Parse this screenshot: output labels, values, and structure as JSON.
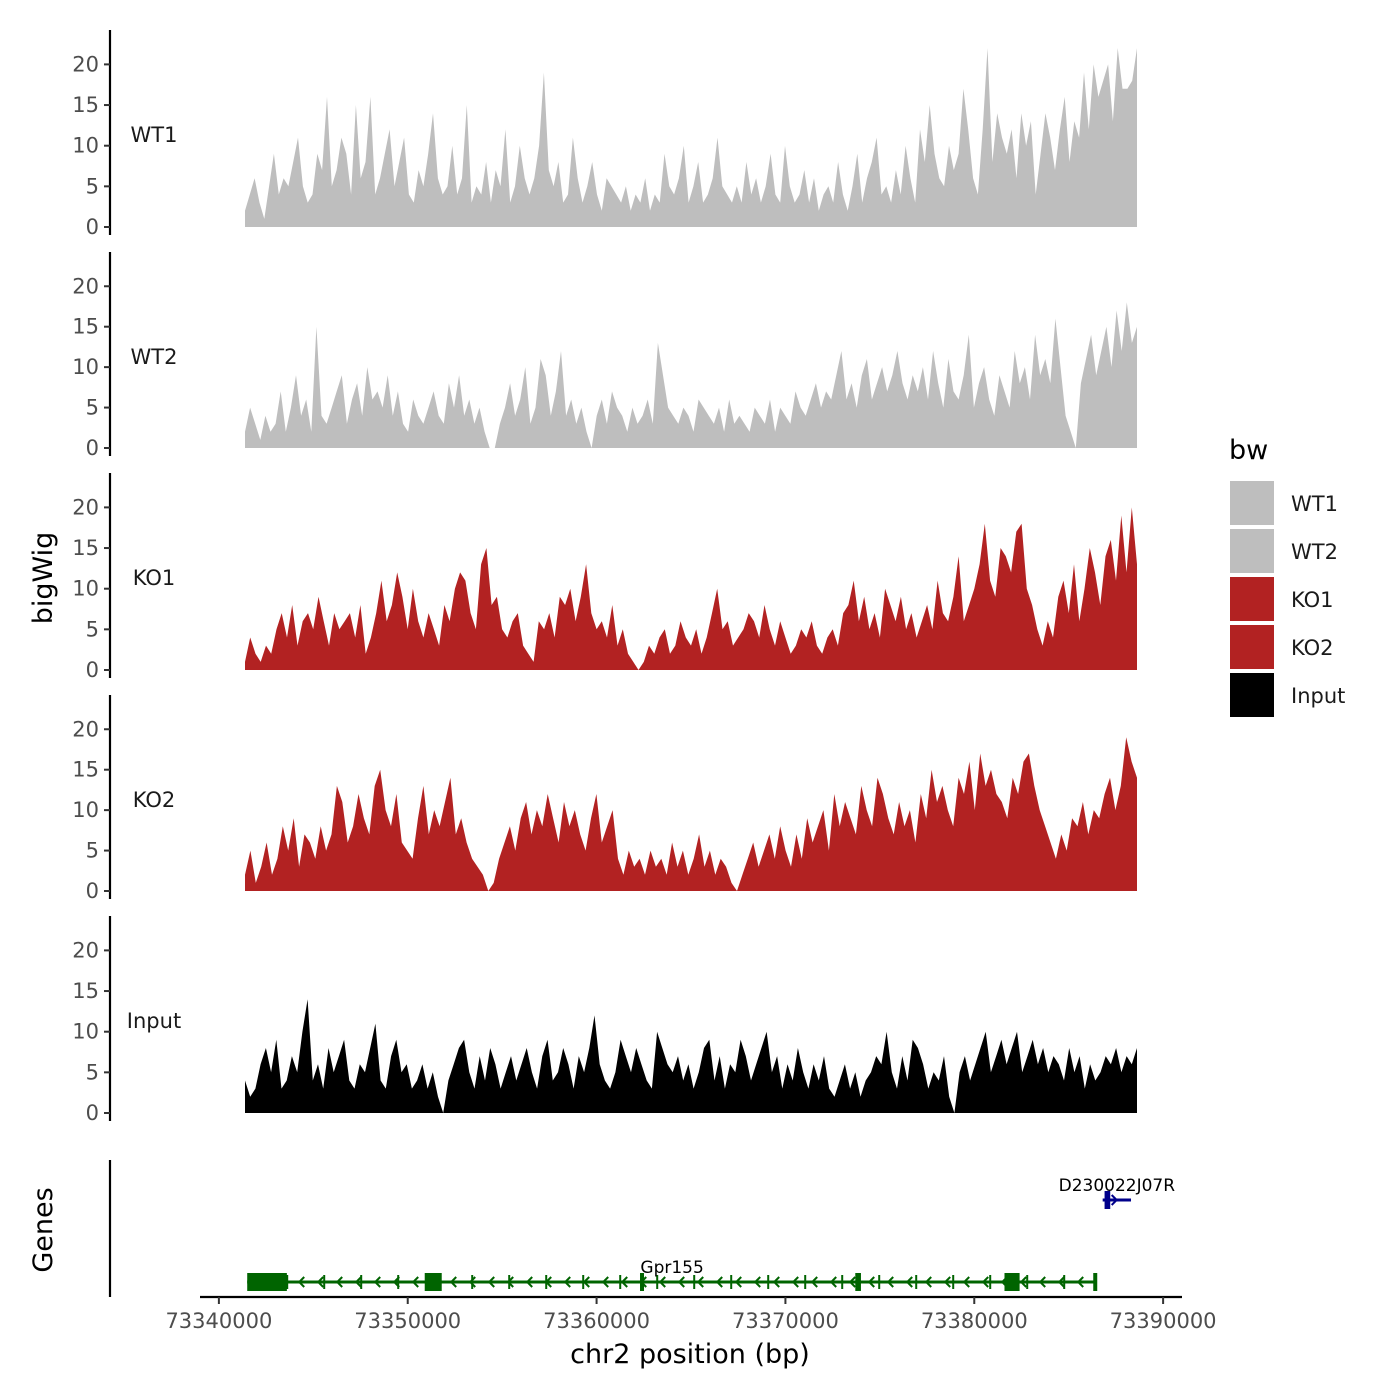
{
  "chart_data": {
    "type": "area",
    "ylabel": "bigWig",
    "xlabel": "chr2 position (bp)",
    "x_range_bp": [
      73341500,
      73388500
    ],
    "xlim": [
      73339000,
      73391000
    ],
    "x_ticks": [
      73340000,
      73350000,
      73360000,
      73370000,
      73380000,
      73390000
    ],
    "x_tick_labels": [
      "73340000",
      "73350000",
      "73360000",
      "73370000",
      "73380000",
      "73390000"
    ],
    "ylim": [
      0,
      23
    ],
    "y_ticks": [
      0,
      5,
      10,
      15,
      20
    ],
    "y_tick_labels": [
      "0",
      "5",
      "10",
      "15",
      "20"
    ],
    "legend": {
      "title": "bw",
      "position": "right",
      "entries": [
        {
          "label": "WT1",
          "color": "#bebebe"
        },
        {
          "label": "WT2",
          "color": "#bebebe"
        },
        {
          "label": "KO1",
          "color": "#b22222"
        },
        {
          "label": "KO2",
          "color": "#b22222"
        },
        {
          "label": "Input",
          "color": "#000000"
        }
      ]
    },
    "series": [
      {
        "name": "WT1",
        "color": "#bebebe",
        "values": [
          2,
          4,
          6,
          3,
          1,
          5,
          9,
          4,
          6,
          5,
          8,
          11,
          5,
          3,
          4,
          9,
          7,
          16,
          5,
          7,
          11,
          9,
          4,
          15,
          6,
          8,
          16,
          4,
          6,
          9,
          12,
          5,
          8,
          11,
          4,
          3,
          7,
          5,
          9,
          14,
          6,
          4,
          5,
          10,
          4,
          6,
          15,
          3,
          5,
          4,
          8,
          3,
          7,
          5,
          12,
          3,
          5,
          10,
          6,
          4,
          6,
          10,
          19,
          7,
          5,
          8,
          3,
          4,
          11,
          6,
          3,
          5,
          8,
          4,
          2,
          6,
          5,
          4,
          3,
          5,
          2,
          4,
          3,
          6,
          2,
          4,
          3,
          9,
          5,
          4,
          6,
          10,
          3,
          5,
          8,
          3,
          4,
          6,
          11,
          5,
          4,
          3,
          5,
          3,
          8,
          4,
          6,
          3,
          5,
          9,
          4,
          3,
          10,
          5,
          3,
          4,
          7,
          3,
          6,
          2,
          4,
          5,
          3,
          8,
          4,
          2,
          5,
          9,
          3,
          6,
          8,
          11,
          4,
          5,
          3,
          7,
          4,
          10,
          6,
          3,
          12,
          8,
          15,
          9,
          6,
          5,
          10,
          7,
          9,
          17,
          12,
          6,
          4,
          12,
          22,
          8,
          14,
          11,
          9,
          12,
          6,
          14,
          10,
          13,
          4,
          9,
          14,
          11,
          7,
          12,
          16,
          8,
          13,
          11,
          19,
          12,
          20,
          16,
          18,
          20,
          13,
          22,
          17,
          17,
          18,
          22
        ]
      },
      {
        "name": "WT2",
        "color": "#bebebe",
        "values": [
          2,
          5,
          3,
          1,
          4,
          2,
          3,
          7,
          2,
          5,
          9,
          4,
          6,
          2,
          15,
          4,
          3,
          5,
          7,
          9,
          3,
          6,
          8,
          4,
          10,
          6,
          7,
          5,
          9,
          4,
          7,
          3,
          2,
          6,
          4,
          3,
          5,
          7,
          4,
          3,
          8,
          5,
          9,
          4,
          6,
          3,
          5,
          2,
          0,
          0,
          3,
          5,
          8,
          4,
          6,
          10,
          3,
          5,
          11,
          9,
          4,
          7,
          12,
          4,
          6,
          3,
          5,
          2,
          0,
          4,
          6,
          3,
          7,
          5,
          4,
          2,
          5,
          3,
          4,
          6,
          3,
          13,
          9,
          5,
          4,
          3,
          5,
          4,
          2,
          6,
          5,
          4,
          3,
          5,
          2,
          6,
          3,
          4,
          3,
          2,
          5,
          4,
          3,
          6,
          2,
          5,
          4,
          3,
          7,
          5,
          4,
          6,
          8,
          5,
          7,
          6,
          9,
          12,
          6,
          8,
          5,
          9,
          11,
          6,
          8,
          10,
          7,
          9,
          12,
          8,
          6,
          9,
          7,
          10,
          6,
          12,
          8,
          5,
          11,
          7,
          6,
          9,
          14,
          5,
          8,
          10,
          6,
          4,
          9,
          7,
          5,
          12,
          8,
          10,
          6,
          14,
          9,
          11,
          8,
          16,
          10,
          4,
          2,
          0,
          8,
          11,
          14,
          9,
          12,
          15,
          10,
          17,
          12,
          18,
          13,
          15
        ]
      },
      {
        "name": "KO1",
        "color": "#b22222",
        "values": [
          1,
          4,
          2,
          1,
          3,
          2,
          5,
          7,
          4,
          8,
          3,
          6,
          7,
          5,
          9,
          6,
          3,
          7,
          5,
          6,
          7,
          4,
          8,
          2,
          4,
          7,
          11,
          6,
          8,
          12,
          9,
          5,
          10,
          6,
          4,
          7,
          5,
          3,
          8,
          6,
          10,
          12,
          11,
          7,
          5,
          13,
          15,
          8,
          9,
          5,
          4,
          6,
          7,
          3,
          2,
          1,
          6,
          5,
          7,
          4,
          9,
          8,
          10,
          6,
          9,
          13,
          7,
          5,
          6,
          4,
          8,
          3,
          5,
          2,
          1,
          0,
          1,
          3,
          2,
          4,
          5,
          2,
          3,
          6,
          4,
          3,
          5,
          2,
          4,
          7,
          10,
          5,
          6,
          3,
          4,
          5,
          7,
          6,
          4,
          8,
          5,
          3,
          6,
          4,
          2,
          3,
          5,
          4,
          6,
          3,
          2,
          4,
          5,
          3,
          7,
          8,
          11,
          6,
          9,
          5,
          7,
          4,
          10,
          8,
          6,
          9,
          5,
          7,
          4,
          6,
          8,
          5,
          11,
          7,
          6,
          9,
          14,
          6,
          8,
          10,
          13,
          18,
          11,
          9,
          15,
          14,
          12,
          17,
          18,
          10,
          8,
          5,
          3,
          6,
          4,
          9,
          11,
          7,
          13,
          6,
          10,
          15,
          12,
          8,
          14,
          16,
          11,
          19,
          12,
          20,
          13
        ]
      },
      {
        "name": "KO2",
        "color": "#b22222",
        "values": [
          2,
          5,
          1,
          3,
          6,
          2,
          4,
          8,
          5,
          9,
          3,
          7,
          6,
          4,
          8,
          5,
          7,
          13,
          11,
          6,
          8,
          12,
          9,
          7,
          13,
          15,
          10,
          8,
          12,
          6,
          5,
          4,
          9,
          13,
          7,
          10,
          8,
          11,
          14,
          7,
          9,
          6,
          4,
          3,
          2,
          0,
          1,
          4,
          6,
          8,
          5,
          9,
          11,
          7,
          10,
          8,
          12,
          9,
          6,
          11,
          8,
          10,
          7,
          5,
          9,
          12,
          6,
          8,
          10,
          4,
          2,
          5,
          3,
          4,
          2,
          5,
          3,
          4,
          2,
          6,
          3,
          5,
          2,
          4,
          7,
          3,
          5,
          2,
          4,
          3,
          1,
          0,
          2,
          4,
          6,
          3,
          5,
          7,
          4,
          8,
          5,
          3,
          7,
          4,
          9,
          6,
          8,
          10,
          5,
          12,
          8,
          11,
          9,
          7,
          13,
          10,
          8,
          14,
          12,
          9,
          7,
          11,
          8,
          10,
          6,
          12,
          9,
          15,
          11,
          13,
          10,
          8,
          14,
          12,
          16,
          10,
          17,
          13,
          15,
          12,
          11,
          9,
          14,
          12,
          16,
          17,
          13,
          10,
          8,
          6,
          4,
          7,
          5,
          9,
          8,
          11,
          7,
          10,
          9,
          12,
          14,
          10,
          13,
          19,
          16,
          14
        ]
      },
      {
        "name": "Input",
        "color": "#000000",
        "values": [
          4,
          2,
          3,
          6,
          8,
          5,
          9,
          3,
          4,
          7,
          5,
          10,
          14,
          4,
          6,
          3,
          8,
          5,
          7,
          9,
          4,
          3,
          6,
          5,
          8,
          11,
          4,
          3,
          7,
          9,
          5,
          6,
          3,
          4,
          6,
          3,
          5,
          2,
          0,
          4,
          6,
          8,
          9,
          5,
          3,
          7,
          4,
          8,
          6,
          3,
          5,
          7,
          4,
          6,
          8,
          5,
          3,
          7,
          9,
          4,
          5,
          8,
          6,
          3,
          7,
          5,
          8,
          12,
          6,
          4,
          3,
          5,
          9,
          7,
          5,
          8,
          6,
          4,
          3,
          10,
          8,
          6,
          5,
          7,
          4,
          6,
          3,
          5,
          8,
          9,
          4,
          7,
          3,
          6,
          5,
          9,
          7,
          4,
          6,
          8,
          10,
          5,
          7,
          3,
          6,
          4,
          8,
          5,
          3,
          6,
          4,
          7,
          3,
          2,
          4,
          6,
          3,
          5,
          2,
          4,
          5,
          7,
          6,
          10,
          5,
          3,
          7,
          4,
          9,
          8,
          6,
          3,
          5,
          4,
          7,
          2,
          0,
          5,
          7,
          4,
          6,
          8,
          10,
          5,
          7,
          9,
          6,
          8,
          10,
          5,
          7,
          9,
          6,
          8,
          5,
          7,
          6,
          4,
          8,
          5,
          7,
          3,
          6,
          4,
          5,
          7,
          6,
          8,
          5,
          7,
          6,
          8
        ]
      }
    ],
    "gene_track": {
      "ylabel": "Genes",
      "genes": [
        {
          "name": "Gpr155",
          "start": 73341500,
          "end": 73386500,
          "strand": "-",
          "color": "#006400",
          "exons": [
            [
              73341500,
              73343600
            ],
            [
              73350900,
              73351800
            ],
            [
              73362300,
              73362500
            ],
            [
              73373700,
              73374000
            ],
            [
              73381600,
              73382400
            ],
            [
              73386300,
              73386500
            ]
          ]
        },
        {
          "name": "D230022J07Rik",
          "label": "D230022J07R",
          "start": 73386800,
          "end": 73388300,
          "strand": "+",
          "color": "#00008b",
          "exons": [
            [
              73386900,
              73387200
            ]
          ]
        }
      ]
    }
  }
}
